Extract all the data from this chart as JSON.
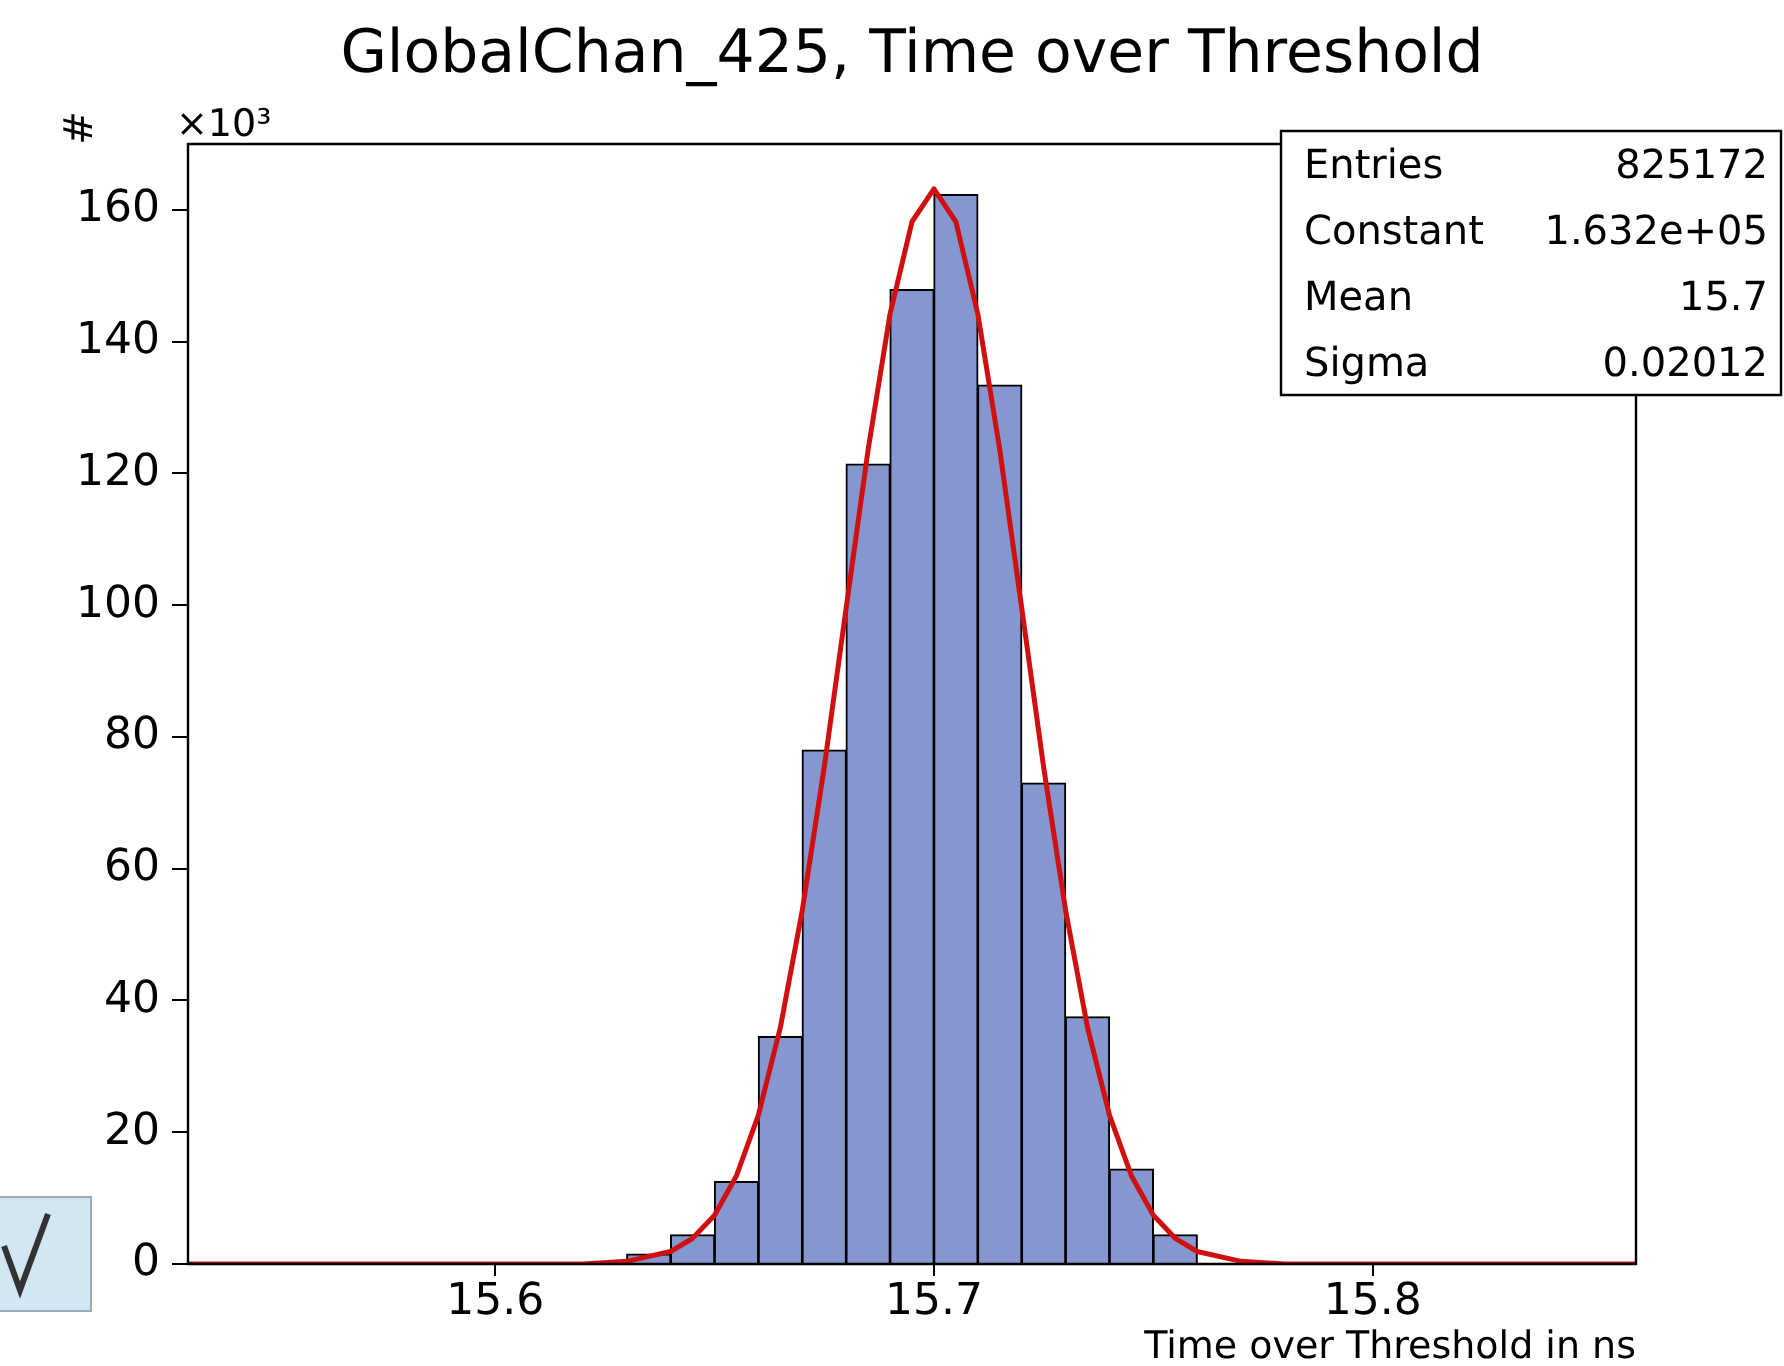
{
  "chart_data": {
    "type": "histogram",
    "title": "GlobalChan_425, Time over Threshold",
    "xlabel": "Time over Threshold in ns",
    "ylabel": "#",
    "annotations": [
      "×10³",
      "Entries",
      "825172",
      "Constant",
      "1.632e+05",
      "Mean",
      "15.7",
      "Sigma",
      "0.02012"
    ],
    "bins": [
      15.63,
      15.64,
      15.65,
      15.66,
      15.67,
      15.68,
      15.69,
      15.7,
      15.71,
      15.72,
      15.73,
      15.74,
      15.75,
      15.76
    ],
    "values": [
      1.5,
      4.4,
      12.5,
      34.5,
      78,
      121.4,
      147.9,
      162.3,
      133.4,
      73,
      37.5,
      14.4,
      4.4
    ],
    "color": "#8597cf",
    "series": [
      {
        "type": "line",
        "color": "#d01010",
        "x": [
          15.53,
          15.6,
          15.62,
          15.63,
          15.64,
          15.645,
          15.65,
          15.655,
          15.66,
          15.665,
          15.67,
          15.675,
          15.68,
          15.685,
          15.69,
          15.695,
          15.7,
          15.705,
          15.71,
          15.715,
          15.72,
          15.725,
          15.73,
          15.735,
          15.74,
          15.745,
          15.75,
          15.755,
          15.76,
          15.77,
          15.78,
          15.8,
          15.86
        ],
        "values": [
          0,
          0,
          0,
          0.4,
          1.9,
          3.9,
          7.4,
          13.4,
          22.6,
          35.9,
          53.7,
          75.4,
          99.6,
          123.6,
          144.2,
          158.2,
          163.2,
          158.2,
          144.2,
          123.6,
          99.6,
          75.4,
          53.7,
          35.9,
          22.6,
          13.4,
          7.4,
          3.9,
          1.9,
          0.4,
          0,
          0,
          0
        ]
      }
    ],
    "xlim": [
      15.53,
      15.86
    ],
    "xticks": [
      15.6,
      15.7,
      15.8
    ],
    "ylim": [
      0,
      170
    ],
    "yticks": [
      0,
      20,
      40,
      60,
      80,
      100,
      120,
      140,
      160
    ],
    "grid": false,
    "legend": false
  }
}
